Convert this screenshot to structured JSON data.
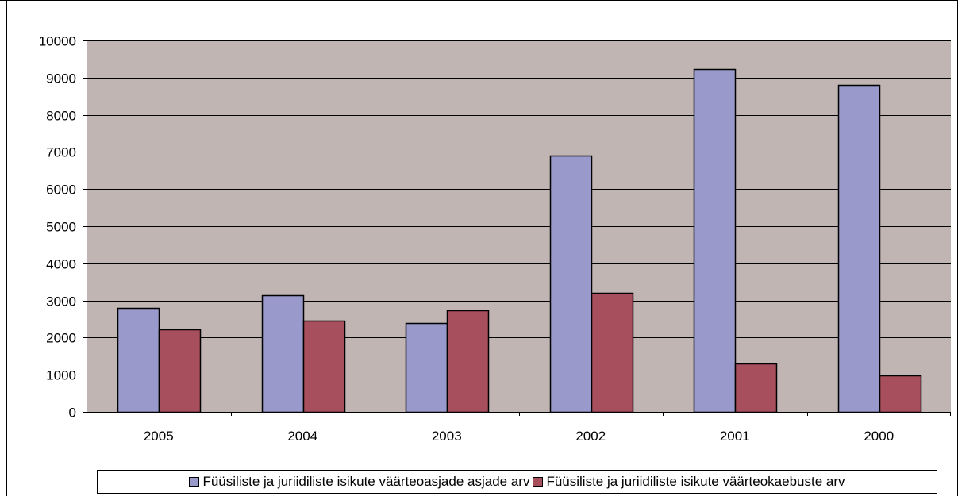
{
  "chart_data": {
    "type": "bar",
    "title": "",
    "xlabel": "",
    "ylabel": "",
    "categories": [
      "2005",
      "2004",
      "2003",
      "2002",
      "2001",
      "2000"
    ],
    "ylim": [
      0,
      10000
    ],
    "yticks": [
      0,
      1000,
      2000,
      3000,
      4000,
      5000,
      6000,
      7000,
      8000,
      9000,
      10000
    ],
    "grid": true,
    "legend_position": "bottom",
    "plot_background": "#c0b5b3",
    "series": [
      {
        "name": "Füüsiliste ja juriidiliste isikute väärteoasjade asjade arv",
        "color": "#9999cc",
        "values": [
          2800,
          3150,
          2400,
          6900,
          9230,
          8800
        ]
      },
      {
        "name": "Füüsiliste ja juriidiliste isikute väärteokaebuste arv",
        "color": "#a84f5e",
        "values": [
          2230,
          2450,
          2740,
          3200,
          1300,
          980
        ]
      }
    ]
  }
}
